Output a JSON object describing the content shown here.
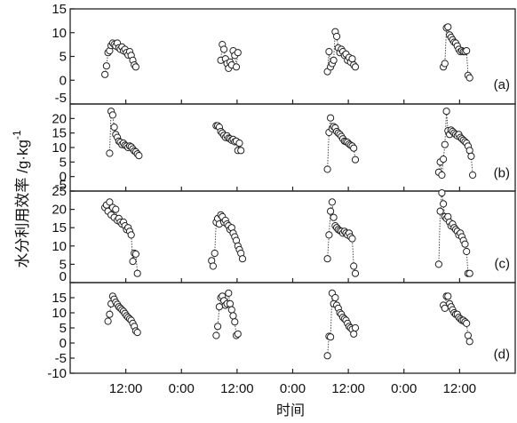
{
  "chart_data": {
    "type": "scatter",
    "ylabel": "水分利用效率 /g·kg",
    "ylabel_superscript": "-1",
    "xlabel": "时间",
    "x_tick_labels": [
      "12:00",
      "0:00",
      "12:00",
      "0:00",
      "12:00",
      "0:00",
      "12:00"
    ],
    "x_range_hours": [
      0,
      96
    ],
    "marker": "open-circle",
    "line_style": "dotted connecting line",
    "grid": false,
    "panels": [
      {
        "label": "(a)",
        "ylim": [
          -5,
          15
        ],
        "yticks": [
          "15",
          "10",
          "5",
          "0",
          "-5"
        ],
        "series": [
          {
            "x": [
              7.5,
              7.83,
              8.17,
              8.5,
              8.83,
              9.17,
              9.5,
              9.83,
              10.17,
              10.5,
              10.83,
              11.17,
              11.5,
              11.83,
              12.17,
              12.5,
              12.83,
              13.17,
              13.5,
              13.83,
              14.17
            ],
            "y": [
              1.2,
              3,
              5.8,
              6.2,
              7.3,
              7.8,
              7.5,
              7.2,
              7.8,
              6.8,
              6.5,
              7,
              6.2,
              6.5,
              5.8,
              5.3,
              6,
              5.2,
              4.2,
              3.2,
              2.8
            ]
          },
          {
            "x": [
              32.5,
              32.83,
              33.17,
              33.5,
              33.83,
              34.17,
              34.5,
              34.83,
              35.17,
              35.5,
              35.83,
              36.17
            ],
            "y": [
              4.2,
              7.5,
              6.5,
              4.5,
              3.5,
              2.5,
              3.8,
              3.2,
              6.2,
              5.2,
              2.8,
              5.8
            ]
          },
          {
            "x": [
              55.5,
              55.83,
              56.17,
              56.5,
              56.83,
              57.17,
              57.5,
              57.83,
              58.17,
              58.5,
              58.83,
              59.17,
              59.5,
              59.83,
              60.17,
              60.5,
              60.83,
              61.17,
              61.5
            ],
            "y": [
              1.8,
              6,
              2.8,
              3.5,
              4.2,
              10.2,
              9.2,
              6.8,
              5.8,
              6.5,
              6,
              5.2,
              5.5,
              4.2,
              4.8,
              3.8,
              4.5,
              3.2,
              2.8
            ]
          },
          {
            "x": [
              80.5,
              80.83,
              81.17,
              81.5,
              81.83,
              82.17,
              82.5,
              82.83,
              83.17,
              83.5,
              83.83,
              84.17,
              84.5,
              84.83,
              85.17,
              85.5,
              85.83,
              86.17
            ],
            "y": [
              2.8,
              3.5,
              11,
              11.2,
              9.5,
              9,
              8.5,
              8,
              7.8,
              7.2,
              6.5,
              6,
              6.2,
              6,
              6,
              6.2,
              1,
              0.5
            ]
          }
        ]
      },
      {
        "label": "(b)",
        "ylim": [
          -5,
          25
        ],
        "yticks": [
          "20",
          "15",
          "10",
          "5",
          "0",
          "-5"
        ],
        "series": [
          {
            "x": [
              8.5,
              8.83,
              9.17,
              9.5,
              9.83,
              10.17,
              10.5,
              10.83,
              11.17,
              11.5,
              11.83,
              12.17,
              12.5,
              12.83,
              13.17,
              13.5,
              13.83,
              14.17,
              14.5,
              14.83
            ],
            "y": [
              8,
              22.5,
              21.2,
              17,
              14.5,
              13.5,
              12.2,
              11.8,
              11,
              11.5,
              10.8,
              10.5,
              10,
              10.5,
              10.2,
              9.5,
              8.8,
              8.5,
              7.8,
              7.2
            ]
          },
          {
            "x": [
              31.5,
              31.83,
              32.17,
              32.5,
              32.83,
              33.17,
              33.5,
              33.83,
              34.17,
              34.5,
              34.83,
              35.17,
              35.5,
              35.83,
              36.17,
              36.5,
              36.83
            ],
            "y": [
              17.5,
              17.5,
              17,
              15.5,
              15,
              14.2,
              13.5,
              14,
              13.2,
              13,
              12.5,
              12.8,
              12,
              12.2,
              9,
              11.5,
              9
            ]
          },
          {
            "x": [
              55.5,
              55.83,
              56.17,
              56.5,
              56.83,
              57.17,
              57.5,
              57.83,
              58.17,
              58.5,
              58.83,
              59.17,
              59.5,
              59.83,
              60.17,
              60.5,
              60.83,
              61.17,
              61.5
            ],
            "y": [
              2.5,
              15.2,
              20.2,
              16.5,
              17.2,
              16.8,
              15.5,
              15,
              14.5,
              13.8,
              13,
              12.2,
              12,
              11.8,
              11.2,
              10.8,
              10.5,
              9.8,
              5.8
            ]
          },
          {
            "x": [
              79.5,
              79.83,
              80.17,
              80.5,
              80.83,
              81.17,
              81.5,
              81.83,
              82.17,
              82.5,
              82.83,
              83.17,
              83.5,
              83.83,
              84.17,
              84.5,
              84.83,
              85.17,
              85.5,
              85.83,
              86.17,
              86.5,
              86.83
            ],
            "y": [
              1.5,
              5,
              0.5,
              6,
              11,
              22.5,
              15.8,
              14.5,
              16,
              15.5,
              15,
              14.5,
              14,
              14.5,
              13.5,
              13,
              12.5,
              12,
              11.5,
              10.5,
              9,
              7,
              0.5
            ]
          }
        ]
      },
      {
        "label": "(c)",
        "ylim": [
          0,
          25
        ],
        "yticks": [
          "25",
          "20",
          "15",
          "10",
          "5",
          "0"
        ],
        "series": [
          {
            "x": [
              7.5,
              7.83,
              8.17,
              8.5,
              8.83,
              9.17,
              9.5,
              9.83,
              10.17,
              10.5,
              10.83,
              11.17,
              11.5,
              11.83,
              12.17,
              12.5,
              12.83,
              13.17,
              13.5,
              13.83,
              14.17,
              14.5
            ],
            "y": [
              20.5,
              21.2,
              19.5,
              22,
              18.5,
              20.5,
              17.8,
              20,
              17,
              17.5,
              16.5,
              16,
              16.5,
              15.5,
              14.5,
              15,
              14,
              13,
              5.8,
              8,
              7.8,
              2.5
            ]
          },
          {
            "x": [
              30.5,
              30.83,
              31.17,
              31.5,
              31.83,
              32.17,
              32.5,
              32.83,
              33.17,
              33.5,
              33.83,
              34.17,
              34.5,
              34.83,
              35.17,
              35.5,
              35.83,
              36.17,
              36.5,
              36.83,
              37.17
            ],
            "y": [
              6,
              4.5,
              8,
              16.5,
              17.5,
              16,
              18.5,
              18,
              16.5,
              17,
              16,
              15.5,
              14.5,
              15,
              13.5,
              12.5,
              11.5,
              10,
              9,
              8,
              6.5
            ]
          },
          {
            "x": [
              55.5,
              55.83,
              56.17,
              56.5,
              56.83,
              57.17,
              57.5,
              57.83,
              58.17,
              58.5,
              58.83,
              59.17,
              59.5,
              59.83,
              60.17,
              60.5,
              60.83,
              61.17,
              61.5
            ],
            "y": [
              6.5,
              13,
              19.5,
              22,
              17.8,
              15.5,
              15,
              14.5,
              14.2,
              14,
              13.5,
              14,
              13.5,
              13,
              13.5,
              12.5,
              12,
              4.5,
              2.5
            ]
          },
          {
            "x": [
              79.5,
              79.83,
              80.17,
              80.5,
              80.83,
              81.17,
              81.5,
              81.83,
              82.17,
              82.5,
              82.83,
              83.17,
              83.5,
              83.83,
              84.17,
              84.5,
              84.83,
              85.17,
              85.5,
              85.83,
              86.17
            ],
            "y": [
              5,
              19.5,
              24.5,
              21.5,
              18,
              17.5,
              18,
              16.5,
              15.5,
              16,
              15,
              14.5,
              14,
              13,
              13.5,
              12.5,
              11.5,
              10.5,
              8.5,
              2.5,
              2.5
            ]
          }
        ]
      },
      {
        "label": "(d)",
        "ylim": [
          -10,
          20
        ],
        "yticks": [
          "15",
          "10",
          "5",
          "0",
          "-5",
          "-10"
        ],
        "series": [
          {
            "x": [
              8.17,
              8.5,
              8.83,
              9.17,
              9.5,
              9.83,
              10.17,
              10.5,
              10.83,
              11.17,
              11.5,
              11.83,
              12.17,
              12.5,
              12.83,
              13.17,
              13.5,
              13.83,
              14.17,
              14.5
            ],
            "y": [
              7.2,
              9.5,
              13,
              15.5,
              14.5,
              13.5,
              12.8,
              12,
              11.5,
              11,
              10.5,
              9.8,
              9,
              8.5,
              8,
              7.5,
              6.5,
              5.5,
              4,
              3.5
            ]
          },
          {
            "x": [
              31.5,
              31.83,
              32.17,
              32.5,
              32.83,
              33.17,
              33.5,
              33.83,
              34.17,
              34.5,
              34.83,
              35.17,
              35.5,
              35.83,
              36.17
            ],
            "y": [
              2.5,
              5.5,
              12,
              15,
              15.5,
              14,
              12.5,
              13,
              16.5,
              13,
              11,
              9,
              7,
              2.5,
              3
            ]
          },
          {
            "x": [
              55.5,
              55.83,
              56.17,
              56.5,
              56.83,
              57.17,
              57.5,
              57.83,
              58.17,
              58.5,
              58.83,
              59.17,
              59.5,
              59.83,
              60.17,
              60.5,
              60.83,
              61.17,
              61.5
            ],
            "y": [
              -4.2,
              2.2,
              2,
              16.5,
              13,
              15,
              12.5,
              11.5,
              10,
              9.5,
              8.5,
              8,
              7.5,
              6.5,
              5.5,
              5,
              4.5,
              3,
              5
            ]
          },
          {
            "x": [
              80.5,
              80.83,
              81.17,
              81.5,
              81.83,
              82.17,
              82.5,
              82.83,
              83.17,
              83.5,
              83.83,
              84.17,
              84.5,
              84.83,
              85.17,
              85.5,
              85.83,
              86.17
            ],
            "y": [
              12.5,
              11.5,
              15.5,
              15.5,
              13,
              12,
              11,
              10,
              9.5,
              9.5,
              8.5,
              8,
              7.5,
              7.5,
              7,
              6.5,
              2.5,
              0.5
            ]
          }
        ]
      }
    ]
  }
}
